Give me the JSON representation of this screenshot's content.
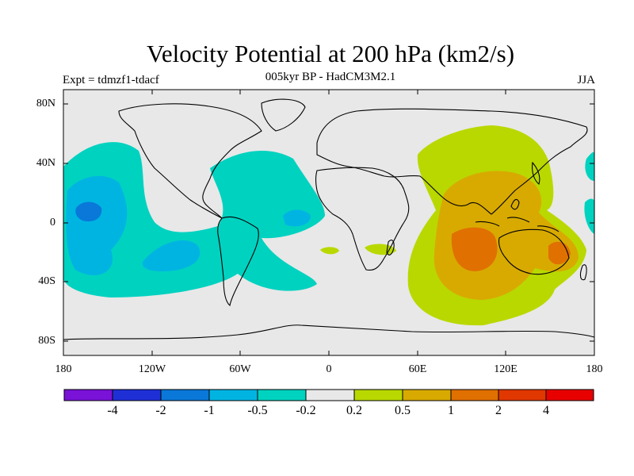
{
  "title": "Velocity Potential at 200 hPa (km2/s)",
  "subtitle": "005kyr BP - HadCM3M2.1",
  "expt": "Expt = tdmzf1-tdacf",
  "season": "JJA",
  "lat_labels": [
    "80N",
    "40N",
    "0",
    "40S",
    "80S"
  ],
  "lon_labels": [
    "180",
    "120W",
    "60W",
    "0",
    "60E",
    "120E",
    "180"
  ],
  "colorbar": {
    "labels": [
      "-4",
      "-2",
      "-1",
      "-0.5",
      "-0.2",
      "0.2",
      "0.5",
      "1",
      "2",
      "4"
    ],
    "colors": [
      "#7a12d8",
      "#1f2fd6",
      "#0a78d8",
      "#00b4e2",
      "#00d2c0",
      "#e8e8e8",
      "#b9d800",
      "#d8aa00",
      "#e07000",
      "#e03800",
      "#e80000"
    ]
  },
  "map": {
    "colors": {
      "ocean_bg": "#e8e8e8",
      "neg_weak": "#00d2c0",
      "neg_mid": "#00b4e2",
      "neg_strong": "#0a78d8",
      "pos_weak": "#b9d800",
      "pos_mid": "#d8aa00",
      "pos_strong": "#e07000",
      "coastline": "#000000"
    }
  }
}
